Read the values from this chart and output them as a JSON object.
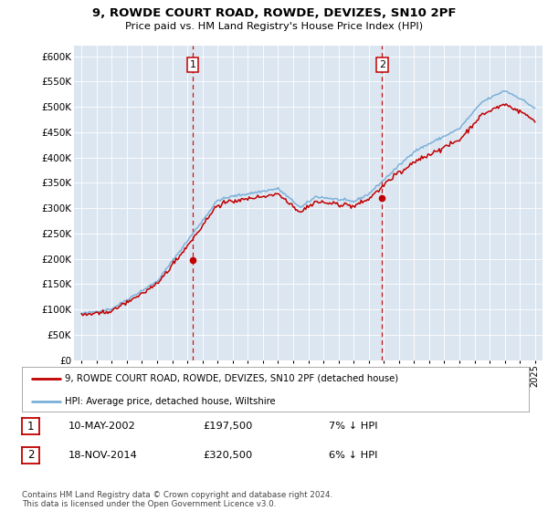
{
  "title": "9, ROWDE COURT ROAD, ROWDE, DEVIZES, SN10 2PF",
  "subtitle": "Price paid vs. HM Land Registry's House Price Index (HPI)",
  "legend_line1": "9, ROWDE COURT ROAD, ROWDE, DEVIZES, SN10 2PF (detached house)",
  "legend_line2": "HPI: Average price, detached house, Wiltshire",
  "footnote": "Contains HM Land Registry data © Crown copyright and database right 2024.\nThis data is licensed under the Open Government Licence v3.0.",
  "sale1": {
    "label": "1",
    "date": "10-MAY-2002",
    "price": "£197,500",
    "hpi": "7% ↓ HPI"
  },
  "sale2": {
    "label": "2",
    "date": "18-NOV-2014",
    "price": "£320,500",
    "hpi": "6% ↓ HPI"
  },
  "vline1_x": 2002.36,
  "vline2_x": 2014.88,
  "sale1_y": 197500,
  "sale2_y": 320500,
  "ylim": [
    0,
    620000
  ],
  "xlim": [
    1994.5,
    2025.5
  ],
  "yticks": [
    0,
    50000,
    100000,
    150000,
    200000,
    250000,
    300000,
    350000,
    400000,
    450000,
    500000,
    550000,
    600000
  ],
  "ytick_labels": [
    "£0",
    "£50K",
    "£100K",
    "£150K",
    "£200K",
    "£250K",
    "£300K",
    "£350K",
    "£400K",
    "£450K",
    "£500K",
    "£550K",
    "£600K"
  ],
  "hpi_color": "#7ab0d8",
  "price_color": "#c00000",
  "vline_color": "#c00000",
  "background_color": "#dce6f1",
  "plot_bg_color": "#dce6f1",
  "grid_color": "#ffffff"
}
